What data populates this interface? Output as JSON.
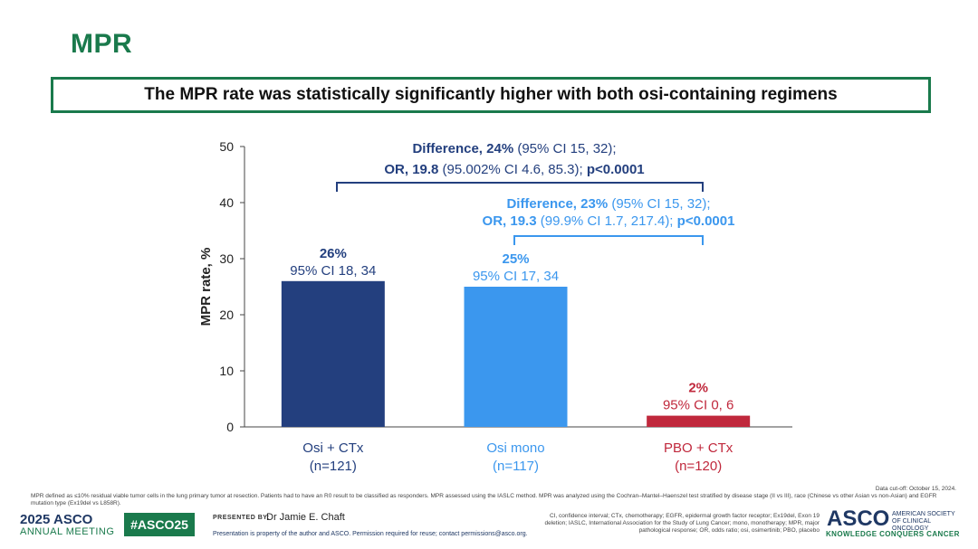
{
  "page": {
    "title": "MPR",
    "subtitle": "The MPR rate was statistically significantly higher with both osi-containing regimens"
  },
  "chart_data": {
    "type": "bar",
    "ylabel": "MPR rate, %",
    "ylim": [
      0,
      50
    ],
    "yticks": [
      "0",
      "10",
      "20",
      "30",
      "40",
      "50"
    ],
    "categories": [
      {
        "name": "Osi + CTx",
        "n": "(n=121)"
      },
      {
        "name": "Osi mono",
        "n": "(n=117)"
      },
      {
        "name": "PBO + CTx",
        "n": "(n=120)"
      }
    ],
    "values": [
      26,
      25,
      2
    ],
    "value_labels": [
      "26%",
      "25%",
      "2%"
    ],
    "ci_labels": [
      "95% CI 18, 34",
      "95% CI 17, 34",
      "95% CI 0, 6"
    ],
    "colors": [
      "#233f7e",
      "#3b97ee",
      "#c0283c"
    ],
    "comparisons": [
      {
        "line1_bold": "Difference, 24%",
        "line1_rest": " (95% CI 15, 32);",
        "line2_bold": "OR, 19.8",
        "line2_mid": " (95.002% CI 4.6, 85.3); ",
        "line2_p": "p<0.0001",
        "color": "#233f7e"
      },
      {
        "line1_bold": "Difference, 23%",
        "line1_rest": " (95% CI 15, 32);",
        "line2_bold": "OR, 19.3",
        "line2_mid": " (99.9% CI 1.7, 217.4); ",
        "line2_p": "p<0.0001",
        "color": "#3b97ee"
      }
    ]
  },
  "footer": {
    "data_cutoff": "Data cut-off: October 15, 2024.",
    "mpr_definition": "MPR defined as ≤10% residual viable tumor cells in the lung primary tumor at resection. Patients had to have an R0 result to be classified as responders. MPR assessed using the IASLC method. MPR was analyzed using the Cochran–Mantel–Haenszel test stratified by disease stage (II vs III), race (Chinese vs other Asian vs non-Asian) and EGFR mutation type (Ex19del vs L858R).",
    "abbreviations": "CI, confidence interval; CTx, chemotherapy; EGFR, epidermal growth factor receptor; Ex19del, Exon 19 deletion; IASLC, International Association for the Study of Lung Cancer; mono, monotherapy; MPR, major pathological response; OR, odds ratio; osi, osimertinib; PBO, placebo",
    "meeting_year_brand": "2025 ASCO",
    "meeting_name": "ANNUAL MEETING",
    "hashtag": "#ASCO25",
    "presented_by": "PRESENTED BY:",
    "presenter": "Dr Jamie E. Chaft",
    "property_notice": "Presentation is property of the author and ASCO. Permission required for reuse; contact permissions@asco.org.",
    "asco_logo": "ASCO",
    "asco_society": "AMERICAN SOCIETY OF CLINICAL ONCOLOGY",
    "asco_tagline": "KNOWLEDGE CONQUERS CANCER"
  }
}
